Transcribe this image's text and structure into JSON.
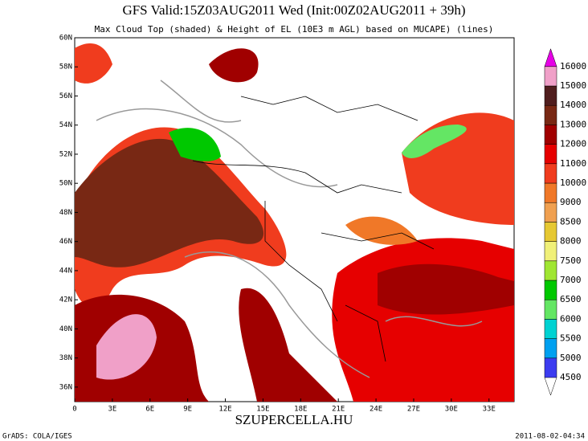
{
  "title": "GFS Valid:15Z03AUG2011 Wed (Init:00Z02AUG2011 + 39h)",
  "subtitle": "Max Cloud Top (shaded) & Height of EL (10E3 m AGL) based on MUCAPE) (lines)",
  "map": {
    "lat_ticks": [
      "36N",
      "38N",
      "40N",
      "42N",
      "44N",
      "46N",
      "48N",
      "50N",
      "52N",
      "54N",
      "56N",
      "58N",
      "60N"
    ],
    "lon_ticks": [
      "0",
      "3E",
      "6E",
      "9E",
      "12E",
      "15E",
      "18E",
      "21E",
      "24E",
      "27E",
      "30E",
      "33E"
    ]
  },
  "colorbar": {
    "levels": [
      4500,
      5000,
      5500,
      6000,
      6500,
      7000,
      7500,
      8000,
      8500,
      9000,
      10000,
      11000,
      12000,
      13000,
      14000,
      15000,
      16000
    ],
    "colors": [
      "#3c3cf0",
      "#00a0f0",
      "#00d2d2",
      "#64e664",
      "#00c800",
      "#a0e632",
      "#f0f078",
      "#e6c832",
      "#f0a050",
      "#f07828",
      "#f03c1e",
      "#e60000",
      "#a00000",
      "#782814",
      "#501e1e",
      "#f0a0c8",
      "#e600e6"
    ]
  },
  "watermark": "SZUPERCELLA.HU",
  "footer_left": "GrADS: COLA/IGES",
  "footer_right": "2011-08-02-04:34"
}
